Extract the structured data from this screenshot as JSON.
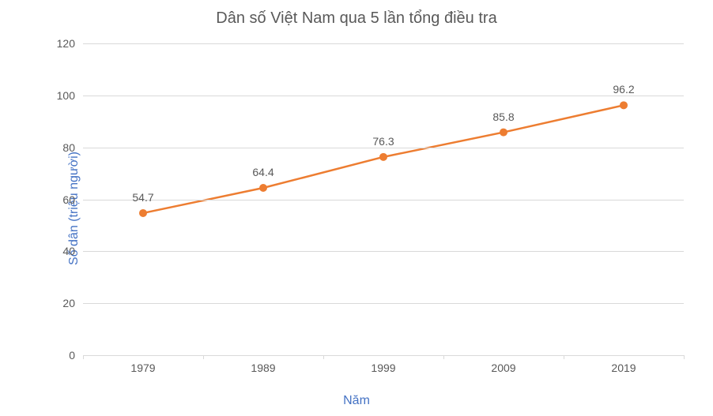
{
  "chart": {
    "type": "line",
    "title": "Dân số Việt Nam qua 5 lần tổng điều tra",
    "title_fontsize": 20,
    "title_color": "#595959",
    "xlabel": "Năm",
    "ylabel": "Số dân (triệu người)",
    "axis_label_color": "#4472c4",
    "axis_label_fontsize": 16,
    "categories": [
      "1979",
      "1989",
      "1999",
      "2009",
      "2019"
    ],
    "values": [
      54.7,
      64.4,
      76.3,
      85.8,
      96.2
    ],
    "line_color": "#ed7d31",
    "marker_color": "#ed7d31",
    "marker_radius": 5,
    "line_width": 2.5,
    "ylim": [
      0,
      120
    ],
    "ytick_step": 20,
    "tick_label_fontsize": 14,
    "tick_label_color": "#595959",
    "data_label_fontsize": 14,
    "data_label_color": "#595959",
    "grid_color": "#d9d9d9",
    "background_color": "#ffffff",
    "yticks": [
      0,
      20,
      40,
      60,
      80,
      100,
      120
    ]
  }
}
